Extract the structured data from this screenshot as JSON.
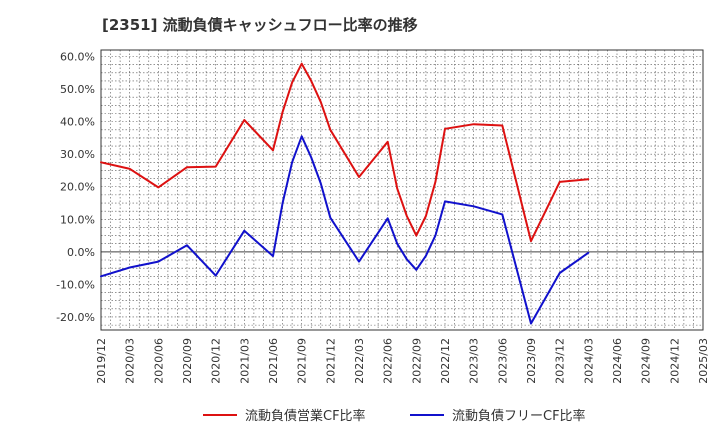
{
  "chart_data": {
    "type": "line",
    "title": "[2351]  流動負債キャッシュフロー比率の推移",
    "xlabel": "",
    "ylabel": "",
    "ylim": [
      -24,
      62
    ],
    "y_ticks": [
      60,
      50,
      40,
      30,
      20,
      10,
      0,
      -10,
      -20
    ],
    "y_tick_labels": [
      "60.0%",
      "50.0%",
      "40.0%",
      "30.0%",
      "20.0%",
      "10.0%",
      "0.0%",
      "-10.0%",
      "-20.0%"
    ],
    "x_tick_labels": [
      "2019/12",
      "2020/03",
      "2020/06",
      "2020/09",
      "2020/12",
      "2021/03",
      "2021/06",
      "2021/09",
      "2021/12",
      "2022/03",
      "2022/06",
      "2022/09",
      "2022/12",
      "2023/03",
      "2023/06",
      "2023/09",
      "2023/12",
      "2024/03",
      "2024/06",
      "2024/09",
      "2024/12",
      "2025/03"
    ],
    "grid": true,
    "legend_position": "bottom",
    "series": [
      {
        "name": "流動負債営業CF比率",
        "color": "#dd1111",
        "points": [
          [
            "2019/12",
            27.5
          ],
          [
            "2020/03",
            25.5
          ],
          [
            "2020/06",
            19.8
          ],
          [
            "2020/09",
            26.0
          ],
          [
            "2020/12",
            26.2
          ],
          [
            "2021/03",
            40.5
          ],
          [
            "2021/06",
            31.2
          ],
          [
            "2021/07",
            43.0
          ],
          [
            "2021/08",
            52.0
          ],
          [
            "2021/09",
            57.8
          ],
          [
            "2021/10",
            52.5
          ],
          [
            "2021/11",
            46.0
          ],
          [
            "2021/12",
            37.5
          ],
          [
            "2022/03",
            23.0
          ],
          [
            "2022/06",
            33.8
          ],
          [
            "2022/07",
            19.5
          ],
          [
            "2022/08",
            11.0
          ],
          [
            "2022/09",
            5.0
          ],
          [
            "2022/10",
            11.0
          ],
          [
            "2022/11",
            21.5
          ],
          [
            "2022/12",
            37.8
          ],
          [
            "2023/03",
            39.2
          ],
          [
            "2023/06",
            38.8
          ],
          [
            "2023/09",
            3.3
          ],
          [
            "2023/12",
            21.5
          ],
          [
            "2024/03",
            22.3
          ]
        ]
      },
      {
        "name": "流動負債フリーCF比率",
        "color": "#1111cc",
        "points": [
          [
            "2019/12",
            -7.5
          ],
          [
            "2020/03",
            -4.8
          ],
          [
            "2020/06",
            -3.0
          ],
          [
            "2020/09",
            2.0
          ],
          [
            "2020/12",
            -7.3
          ],
          [
            "2021/03",
            6.5
          ],
          [
            "2021/06",
            -1.3
          ],
          [
            "2021/07",
            15.0
          ],
          [
            "2021/08",
            27.5
          ],
          [
            "2021/09",
            35.5
          ],
          [
            "2021/10",
            29.0
          ],
          [
            "2021/11",
            21.0
          ],
          [
            "2021/12",
            10.5
          ],
          [
            "2022/03",
            -3.0
          ],
          [
            "2022/06",
            10.3
          ],
          [
            "2022/07",
            2.5
          ],
          [
            "2022/08",
            -2.3
          ],
          [
            "2022/09",
            -5.5
          ],
          [
            "2022/10",
            -1.2
          ],
          [
            "2022/11",
            5.0
          ],
          [
            "2022/12",
            15.5
          ],
          [
            "2023/03",
            14.0
          ],
          [
            "2023/06",
            11.5
          ],
          [
            "2023/09",
            -22.0
          ],
          [
            "2023/12",
            -6.5
          ],
          [
            "2024/03",
            -0.3
          ]
        ]
      }
    ]
  }
}
